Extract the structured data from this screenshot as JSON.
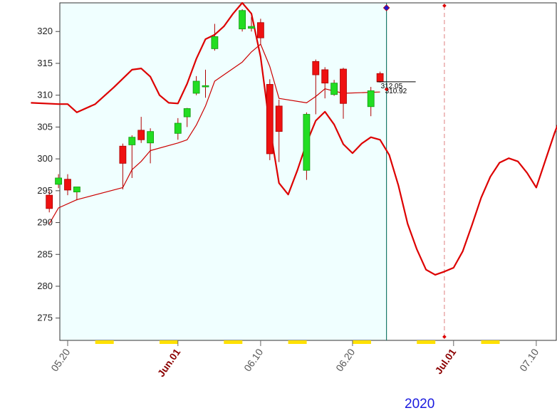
{
  "chart_data": {
    "type": "candlestick",
    "year_label": "2020",
    "ylim": [
      271.5,
      324.5
    ],
    "y_ticks": [
      275,
      280,
      285,
      290,
      295,
      300,
      305,
      310,
      315,
      320
    ],
    "y_tick_labels": [
      "275",
      "280",
      "285",
      "290",
      "295",
      "300",
      "305",
      "310",
      "315",
      "320"
    ],
    "x_ticks": [
      {
        "label": "05.20",
        "date": "2020-05-20",
        "style": "normal"
      },
      {
        "label": "Jun.01",
        "date": "2020-06-01",
        "style": "month"
      },
      {
        "label": "06.10",
        "date": "2020-06-10",
        "style": "normal"
      },
      {
        "label": "06.20",
        "date": "2020-06-20",
        "style": "normal"
      },
      {
        "label": "Jul.01",
        "date": "2020-07-01",
        "style": "month"
      },
      {
        "label": "07.10",
        "date": "2020-07-10",
        "style": "normal"
      }
    ],
    "weekends": [
      "2020-05-23",
      "2020-05-30",
      "2020-06-06",
      "2020-06-13",
      "2020-06-20",
      "2020-06-27",
      "2020-07-04",
      "2020-07-11"
    ],
    "candles": [
      {
        "date": "2020-05-18",
        "open": 294.3,
        "high": 295.0,
        "low": 291.6,
        "close": 292.2
      },
      {
        "date": "2020-05-19",
        "open": 296.0,
        "high": 297.6,
        "low": 295.4,
        "close": 297.0
      },
      {
        "date": "2020-05-20",
        "open": 296.8,
        "high": 297.6,
        "low": 294.3,
        "close": 295.1
      },
      {
        "date": "2020-05-21",
        "open": 294.8,
        "high": 295.6,
        "low": 293.5,
        "close": 295.6
      },
      {
        "date": "2020-05-26",
        "open": 302.0,
        "high": 302.4,
        "low": 295.2,
        "close": 299.3
      },
      {
        "date": "2020-05-27",
        "open": 302.2,
        "high": 303.7,
        "low": 297.0,
        "close": 303.4
      },
      {
        "date": "2020-05-28",
        "open": 304.5,
        "high": 306.6,
        "low": 302.5,
        "close": 303.0
      },
      {
        "date": "2020-05-29",
        "open": 302.5,
        "high": 304.8,
        "low": 299.3,
        "close": 304.3
      },
      {
        "date": "2020-06-01",
        "open": 304.0,
        "high": 306.4,
        "low": 303.0,
        "close": 305.6
      },
      {
        "date": "2020-06-02",
        "open": 306.6,
        "high": 308.0,
        "low": 305.0,
        "close": 307.9
      },
      {
        "date": "2020-06-03",
        "open": 310.3,
        "high": 313.0,
        "low": 310.0,
        "close": 312.2
      },
      {
        "date": "2020-06-04",
        "open": 311.3,
        "high": 314.0,
        "low": 309.6,
        "close": 311.5
      },
      {
        "date": "2020-06-05",
        "open": 317.3,
        "high": 321.2,
        "low": 317.0,
        "close": 319.2
      },
      {
        "date": "2020-06-08",
        "open": 320.4,
        "high": 323.5,
        "low": 320.0,
        "close": 323.3
      },
      {
        "date": "2020-06-09",
        "open": 320.5,
        "high": 322.3,
        "low": 320.0,
        "close": 320.8
      },
      {
        "date": "2020-06-10",
        "open": 321.4,
        "high": 322.0,
        "low": 318.0,
        "close": 319.0
      },
      {
        "date": "2020-06-11",
        "open": 311.7,
        "high": 312.5,
        "low": 299.8,
        "close": 300.8
      },
      {
        "date": "2020-06-12",
        "open": 308.3,
        "high": 309.3,
        "low": 299.5,
        "close": 304.3
      },
      {
        "date": "2020-06-15",
        "open": 298.2,
        "high": 307.3,
        "low": 296.7,
        "close": 307.0
      },
      {
        "date": "2020-06-16",
        "open": 315.3,
        "high": 315.6,
        "low": 307.0,
        "close": 313.2
      },
      {
        "date": "2020-06-17",
        "open": 314.0,
        "high": 314.4,
        "low": 309.5,
        "close": 311.9
      },
      {
        "date": "2020-06-18",
        "open": 310.1,
        "high": 312.4,
        "low": 309.9,
        "close": 311.9
      },
      {
        "date": "2020-06-19",
        "open": 314.1,
        "high": 314.3,
        "low": 306.3,
        "close": 308.7
      },
      {
        "date": "2020-06-22",
        "open": 308.2,
        "high": 311.3,
        "low": 306.7,
        "close": 310.7
      },
      {
        "date": "2020-06-23",
        "open": 313.4,
        "high": 313.7,
        "low": 312.0,
        "close": 312.1
      }
    ],
    "price_labels": [
      "312.05",
      "310.92"
    ],
    "last_candle_date": "2020-06-23",
    "projection_date": "2020-06-30",
    "series": [
      {
        "role": "ma",
        "color": "#cc0000",
        "points": [
          [
            "2020-05-18",
            289.8
          ],
          [
            "2020-05-19",
            292.3
          ],
          [
            "2020-05-21",
            293.6
          ],
          [
            "2020-05-26",
            295.5
          ],
          [
            "2020-05-27",
            298.3
          ],
          [
            "2020-05-28",
            299.6
          ],
          [
            "2020-05-29",
            301.3
          ],
          [
            "2020-06-01",
            302.5
          ],
          [
            "2020-06-02",
            303.0
          ],
          [
            "2020-06-03",
            305.3
          ],
          [
            "2020-06-04",
            308.3
          ],
          [
            "2020-06-05",
            312.2
          ],
          [
            "2020-06-08",
            315.2
          ],
          [
            "2020-06-09",
            316.8
          ],
          [
            "2020-06-10",
            318.0
          ],
          [
            "2020-06-11",
            314.5
          ],
          [
            "2020-06-12",
            309.5
          ],
          [
            "2020-06-15",
            308.8
          ],
          [
            "2020-06-16",
            309.8
          ],
          [
            "2020-06-17",
            311.0
          ],
          [
            "2020-06-19",
            310.3
          ],
          [
            "2020-06-23",
            310.5
          ]
        ]
      },
      {
        "role": "upper",
        "color": "#dd0000",
        "points": [
          [
            "2020-05-16",
            308.8
          ],
          [
            "2020-05-19",
            308.6
          ],
          [
            "2020-05-20",
            308.6
          ],
          [
            "2020-05-21",
            307.3
          ],
          [
            "2020-05-23",
            308.6
          ],
          [
            "2020-05-25",
            311.2
          ],
          [
            "2020-05-27",
            314.0
          ],
          [
            "2020-05-28",
            314.2
          ],
          [
            "2020-05-29",
            312.9
          ],
          [
            "2020-05-30",
            310.0
          ],
          [
            "2020-05-31",
            308.8
          ],
          [
            "2020-06-01",
            308.7
          ],
          [
            "2020-06-02",
            311.8
          ],
          [
            "2020-06-03",
            315.7
          ],
          [
            "2020-06-04",
            318.8
          ],
          [
            "2020-06-05",
            319.5
          ],
          [
            "2020-06-06",
            320.8
          ],
          [
            "2020-06-07",
            322.8
          ],
          [
            "2020-06-08",
            324.5
          ],
          [
            "2020-06-09",
            322.8
          ],
          [
            "2020-06-10",
            316.0
          ],
          [
            "2020-06-11",
            305.0
          ],
          [
            "2020-06-12",
            296.2
          ],
          [
            "2020-06-13",
            294.4
          ],
          [
            "2020-06-14",
            298.2
          ],
          [
            "2020-06-15",
            302.5
          ],
          [
            "2020-06-16",
            306.0
          ],
          [
            "2020-06-17",
            307.4
          ],
          [
            "2020-06-18",
            305.4
          ],
          [
            "2020-06-19",
            302.3
          ],
          [
            "2020-06-20",
            300.9
          ],
          [
            "2020-06-21",
            302.4
          ],
          [
            "2020-06-22",
            303.4
          ],
          [
            "2020-06-23",
            303.0
          ],
          [
            "2020-06-24",
            300.6
          ],
          [
            "2020-06-25",
            295.8
          ],
          [
            "2020-06-26",
            289.8
          ],
          [
            "2020-06-27",
            285.8
          ],
          [
            "2020-06-28",
            282.6
          ],
          [
            "2020-06-29",
            281.8
          ],
          [
            "2020-06-30",
            282.3
          ],
          [
            "2020-07-01",
            282.9
          ],
          [
            "2020-07-02",
            285.5
          ],
          [
            "2020-07-03",
            289.6
          ],
          [
            "2020-07-04",
            293.9
          ],
          [
            "2020-07-05",
            297.2
          ],
          [
            "2020-07-06",
            299.4
          ],
          [
            "2020-07-07",
            300.1
          ],
          [
            "2020-07-08",
            299.6
          ],
          [
            "2020-07-09",
            297.8
          ],
          [
            "2020-07-10",
            295.5
          ],
          [
            "2020-07-11",
            299.8
          ],
          [
            "2020-07-12",
            304.1
          ],
          [
            "2020-07-13",
            307.8
          ]
        ]
      }
    ]
  }
}
